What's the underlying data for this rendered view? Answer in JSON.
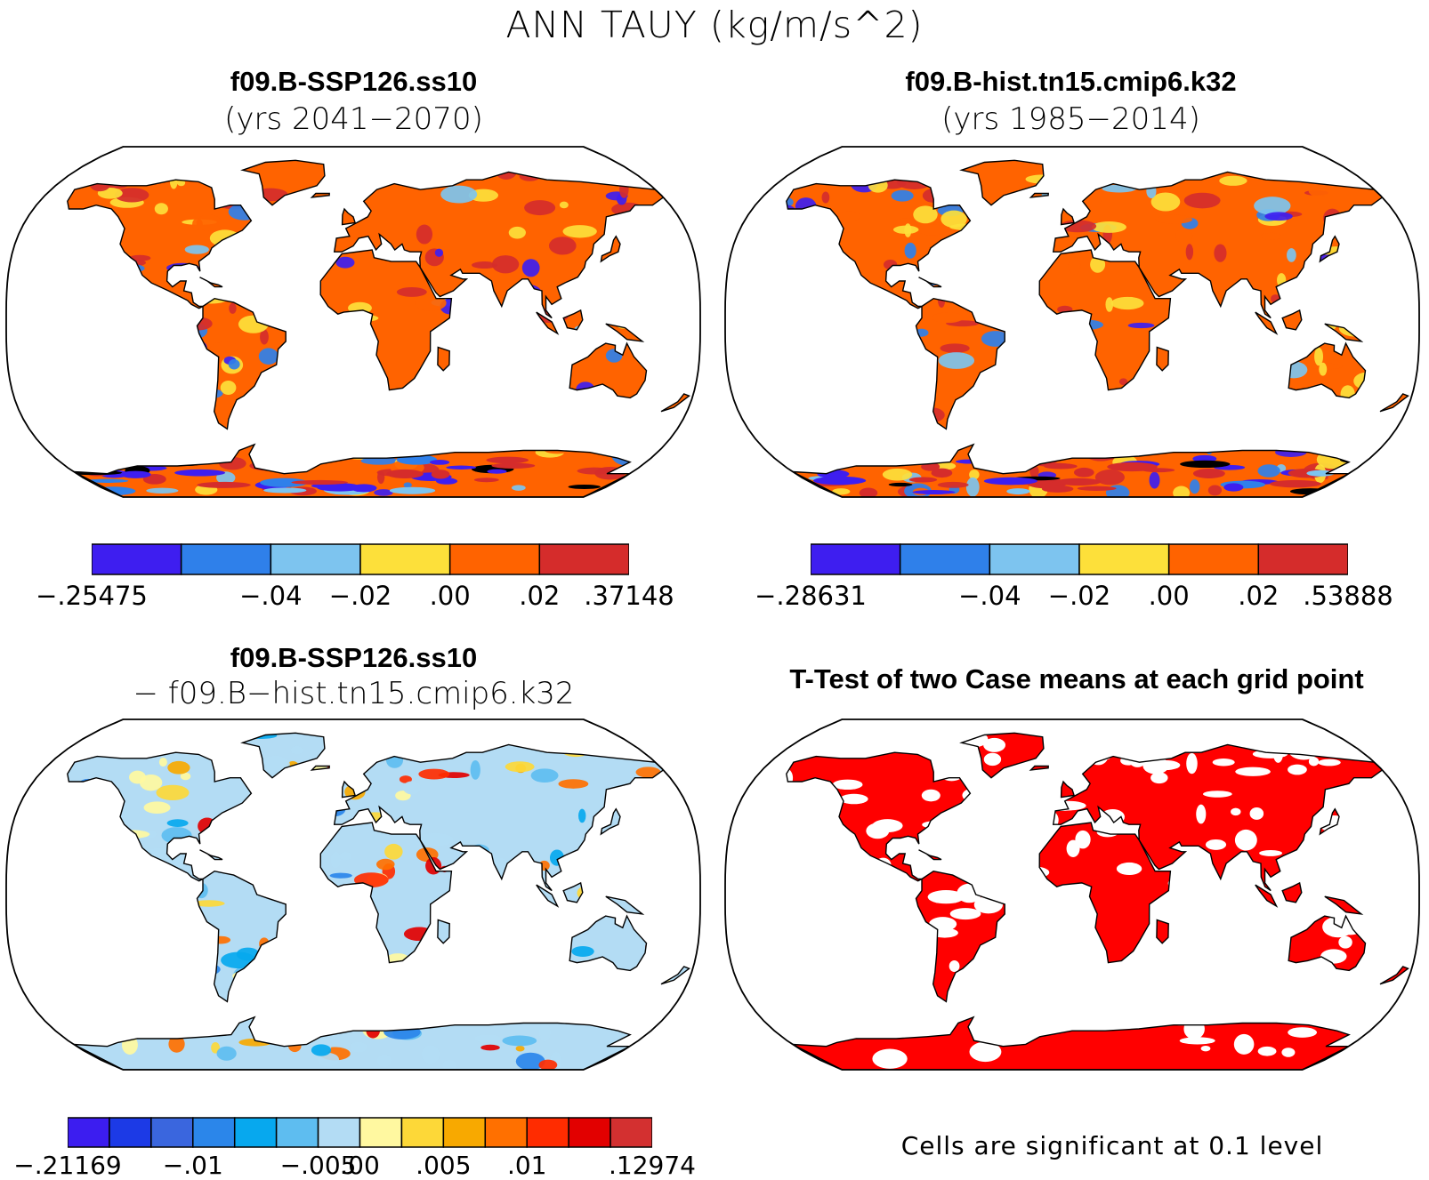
{
  "figure": {
    "title": "ANN TAUY (kg/m/s^2)",
    "note": "Cells are significant at 0.1 level"
  },
  "panels": [
    {
      "title": "f09.B-SSP126.ss10",
      "subtitle": "(yrs 2041−2070)",
      "colors": [
        "#3e1ef0",
        "#2f80ea",
        "#7dc4ef",
        "#fde03a",
        "#ff6300",
        "#d52c2b"
      ],
      "tick_labels": [
        "−.25475",
        "−.04",
        "−.02",
        ".00",
        ".02",
        ".37148"
      ],
      "tick_edges": [
        0,
        2,
        3,
        4,
        5,
        6
      ]
    },
    {
      "title": "f09.B-hist.tn15.cmip6.k32",
      "subtitle": "(yrs 1985−2014)",
      "colors": [
        "#3e1ef0",
        "#2f80ea",
        "#7dc4ef",
        "#fde03a",
        "#ff6300",
        "#d52c2b"
      ],
      "tick_labels": [
        "−.28631",
        "−.04",
        "−.02",
        ".00",
        ".02",
        ".53888"
      ],
      "tick_edges": [
        0,
        2,
        3,
        4,
        5,
        6
      ]
    },
    {
      "title": "f09.B-SSP126.ss10",
      "subtitle": "− f09.B−hist.tn15.cmip6.k32",
      "colors": [
        "#3c1df0",
        "#1c3ae6",
        "#3a66de",
        "#2b86ea",
        "#07a8ee",
        "#5ebdf0",
        "#b3dcf4",
        "#fff8a0",
        "#fdd838",
        "#f8a900",
        "#ff7000",
        "#ff2c00",
        "#e20000",
        "#d33030"
      ],
      "tick_labels": [
        "−.21169",
        "−.01",
        "−.005",
        ".00",
        ".005",
        ".01",
        ".12974"
      ],
      "tick_edges": [
        0,
        3,
        6,
        7,
        9,
        11,
        14
      ]
    },
    {
      "title": "T-Test of two Case means at each grid point",
      "colors": [
        "#ff0000"
      ]
    }
  ]
}
